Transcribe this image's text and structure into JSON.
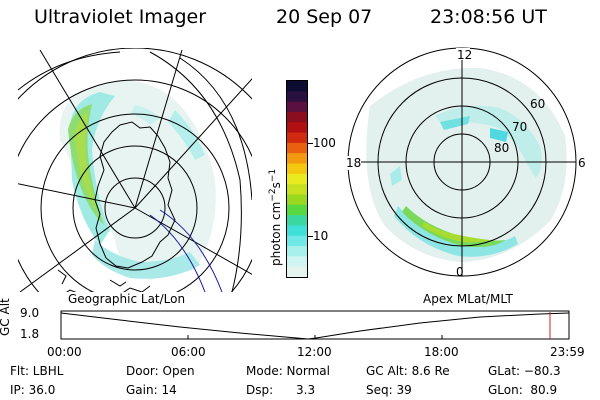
{
  "header": {
    "instrument": "Ultraviolet Imager",
    "date": "20 Sep 07",
    "time": "23:08:56 UT"
  },
  "colorbar": {
    "label_main": "photon cm",
    "label_exp1": "−2",
    "label_mid": "s",
    "label_exp2": "−1",
    "ticks": [
      "100",
      "10"
    ],
    "colors": [
      "#0c0c30",
      "#2a1040",
      "#5a1040",
      "#8a0e1e",
      "#b01010",
      "#d02a10",
      "#e86010",
      "#f49a10",
      "#f4c810",
      "#eaea20",
      "#c8e020",
      "#9ad820",
      "#58d840",
      "#3ad8a0",
      "#40e0d8",
      "#70e8e8",
      "#a8f0ec",
      "#d0f4f0",
      "#e6f4f0"
    ]
  },
  "maps": {
    "left_label": "Geographic Lat/Lon",
    "right_label": "Apex MLat/MLT",
    "mlt_labels": {
      "top": "12",
      "left": "18",
      "right": "6",
      "bottom": "0"
    },
    "lat_labels": [
      "60",
      "70",
      "80"
    ]
  },
  "timeline": {
    "ylabel": "GC Alt",
    "y_ticks": [
      "9.0",
      "1.8"
    ],
    "x_ticks": [
      "00:00",
      "06:00",
      "12:00",
      "18:00",
      "23:59"
    ]
  },
  "info": {
    "row1": [
      "Flt: LBHL",
      "Door: Open",
      "Mode: Normal",
      "GC Alt: 8.6 Re",
      "GLat: −80.3"
    ],
    "row2": [
      "IP: 36.0",
      "Gain: 14",
      "Dsp:      3.3",
      "Seq: 39",
      "GLon:  80.9"
    ]
  }
}
